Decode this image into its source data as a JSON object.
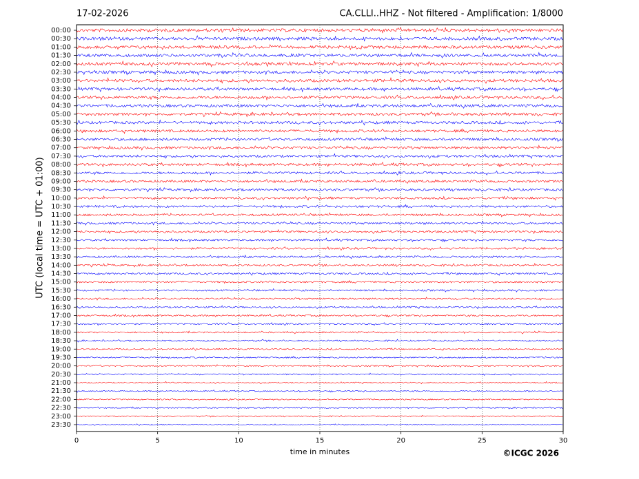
{
  "chart_data": {
    "type": "helicorder",
    "title_left": "17-02-2026",
    "title": "CA.CLLI..HHZ - Not filtered - Amplification: 1/8000",
    "ylabel": "UTC (local time = UTC + 01:00)",
    "xlabel": "time in minutes",
    "copyright": "©ICGC 2026",
    "categories": [
      "00:00",
      "00:30",
      "01:00",
      "01:30",
      "02:00",
      "02:30",
      "03:00",
      "03:30",
      "04:00",
      "04:30",
      "05:00",
      "05:30",
      "06:00",
      "06:30",
      "07:00",
      "07:30",
      "08:00",
      "08:30",
      "09:00",
      "09:30",
      "10:00",
      "10:30",
      "11:00",
      "11:30",
      "12:00",
      "12:30",
      "13:00",
      "13:30",
      "14:00",
      "14:30",
      "15:00",
      "15:30",
      "16:00",
      "16:30",
      "17:00",
      "17:30",
      "18:00",
      "18:30",
      "19:00",
      "19:30",
      "20:00",
      "20:30",
      "21:00",
      "21:30",
      "22:00",
      "22:30",
      "23:00",
      "23:30"
    ],
    "colors": [
      "#ff0000",
      "#0000ff"
    ],
    "xlim": [
      0,
      30
    ],
    "xticks": [
      0,
      5,
      10,
      15,
      20,
      25,
      30
    ],
    "grid": true
  }
}
